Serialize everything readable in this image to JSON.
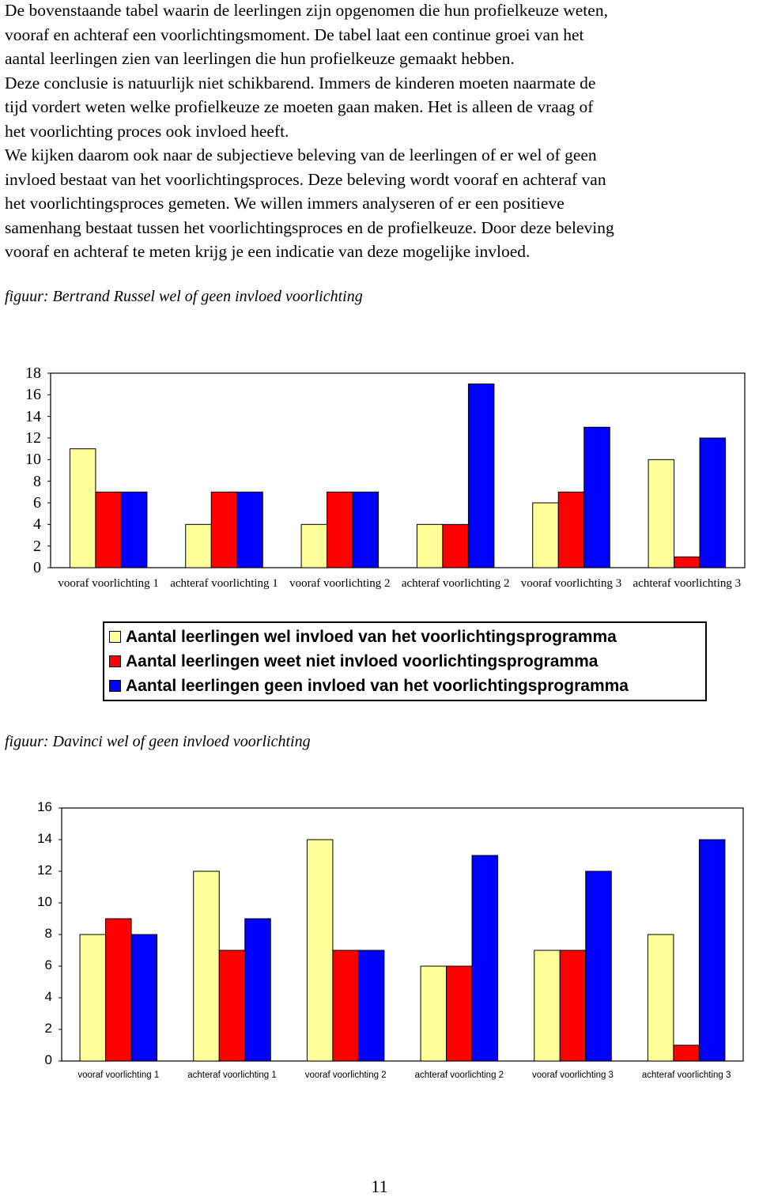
{
  "paragraph_lines": [
    "De bovenstaande tabel waarin de leerlingen zijn opgenomen die hun profielkeuze weten,",
    "vooraf en achteraf een voorlichtingsmoment. De tabel laat een continue groei van het",
    "aantal leerlingen zien van leerlingen die hun profielkeuze gemaakt hebben.",
    "Deze conclusie is natuurlijk niet schikbarend. Immers de kinderen moeten naarmate de",
    "tijd vordert weten welke profielkeuze ze moeten gaan maken. Het is alleen de vraag of",
    "het voorlichting proces ook invloed heeft.",
    "We kijken daarom ook naar de subjectieve beleving van de leerlingen of er wel of geen",
    "invloed bestaat van het voorlichtingsproces. Deze beleving wordt vooraf en achteraf van",
    "het voorlichtingsproces gemeten. We willen immers analyseren of er een positieve",
    "samenhang bestaat tussen het voorlichtingsproces en de profielkeuze. Door deze beleving",
    "vooraf en achteraf te meten krijg je een indicatie van deze mogelijke invloed."
  ],
  "chart_data": [
    {
      "type": "bar",
      "title": "figuur: Bertrand Russel wel of geen invloed voorlichting",
      "categories": [
        "vooraf voorlichting 1",
        "achteraf voorlichting 1",
        "vooraf voorlichting 2",
        "achteraf voorlichting 2",
        "vooraf voorlichting 3",
        "achteraf voorlichting 3"
      ],
      "series": [
        {
          "name": "Aantal leerlingen wel invloed van het voorlichtingsprogramma",
          "color": "#ffff99",
          "values": [
            11,
            4,
            4,
            4,
            6,
            10
          ]
        },
        {
          "name": "Aantal leerlingen weet niet invloed voorlichtingsprogramma",
          "color": "#ff0000",
          "values": [
            7,
            7,
            7,
            4,
            7,
            1
          ]
        },
        {
          "name": "Aantal leerlingen geen invloed van het voorlichtingsprogramma",
          "color": "#0000ff",
          "values": [
            7,
            7,
            7,
            17,
            13,
            12
          ]
        }
      ],
      "ylim": [
        0,
        18
      ],
      "yticks": [
        0,
        2,
        4,
        6,
        8,
        10,
        12,
        14,
        16,
        18
      ],
      "grid": false,
      "legend": "bottom"
    },
    {
      "type": "bar",
      "title": "figuur: Davinci wel of geen invloed voorlichting",
      "categories": [
        "vooraf voorlichting 1",
        "achteraf voorlichting 1",
        "vooraf voorlichting 2",
        "achteraf voorlichting 2",
        "vooraf voorlichting 3",
        "achteraf voorlichting 3"
      ],
      "series": [
        {
          "color": "#ffff99",
          "values": [
            8,
            12,
            14,
            6,
            7,
            8
          ]
        },
        {
          "color": "#ff0000",
          "values": [
            9,
            7,
            7,
            6,
            7,
            1
          ]
        },
        {
          "color": "#0000ff",
          "values": [
            8,
            9,
            7,
            13,
            12,
            14
          ]
        }
      ],
      "ylim": [
        0,
        16
      ],
      "yticks": [
        0,
        2,
        4,
        6,
        8,
        10,
        12,
        14,
        16
      ],
      "grid": false
    }
  ],
  "page_number": "11"
}
